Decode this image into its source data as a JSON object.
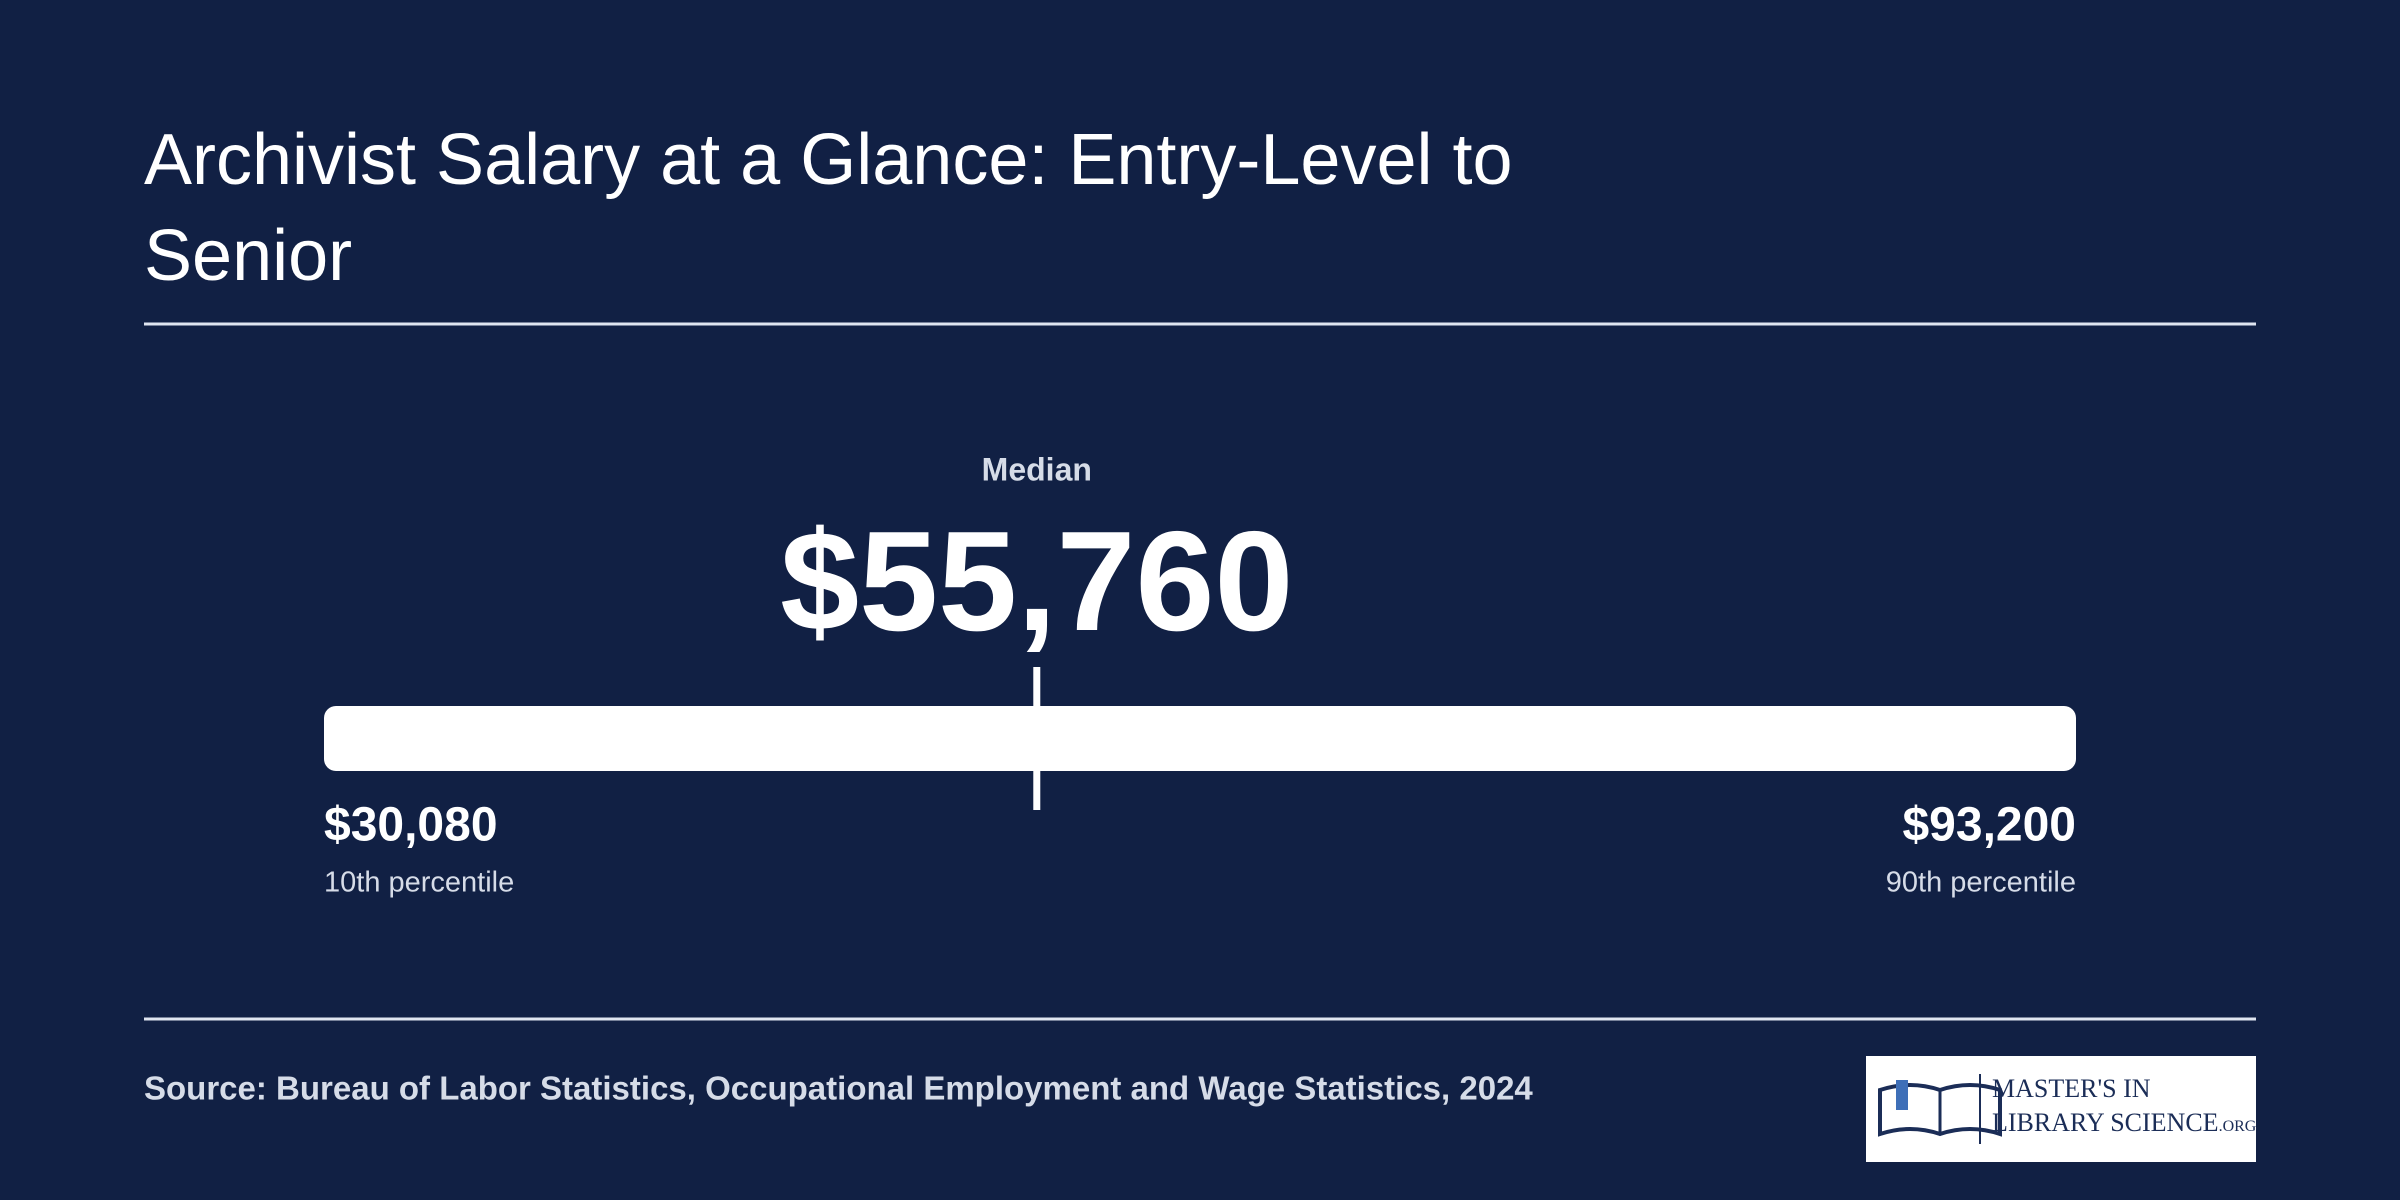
{
  "chart_data": {
    "type": "range",
    "title": "Archivist Salary at a Glance: Entry-Level to Senior",
    "categories": [
      "10th percentile",
      "Median",
      "90th percentile"
    ],
    "values": [
      30080,
      55760,
      93200
    ],
    "value_labels": [
      "$30,080",
      "$55,760",
      "$93,200"
    ],
    "color": "#ffffff",
    "source": "Source: Bureau of Labor Statistics, Occupational Employment and Wage Statistics, 2024"
  },
  "logo": {
    "line1": "MASTER'S IN",
    "line2": "LIBRARY SCIENCE",
    "suffix": ".ORG"
  }
}
